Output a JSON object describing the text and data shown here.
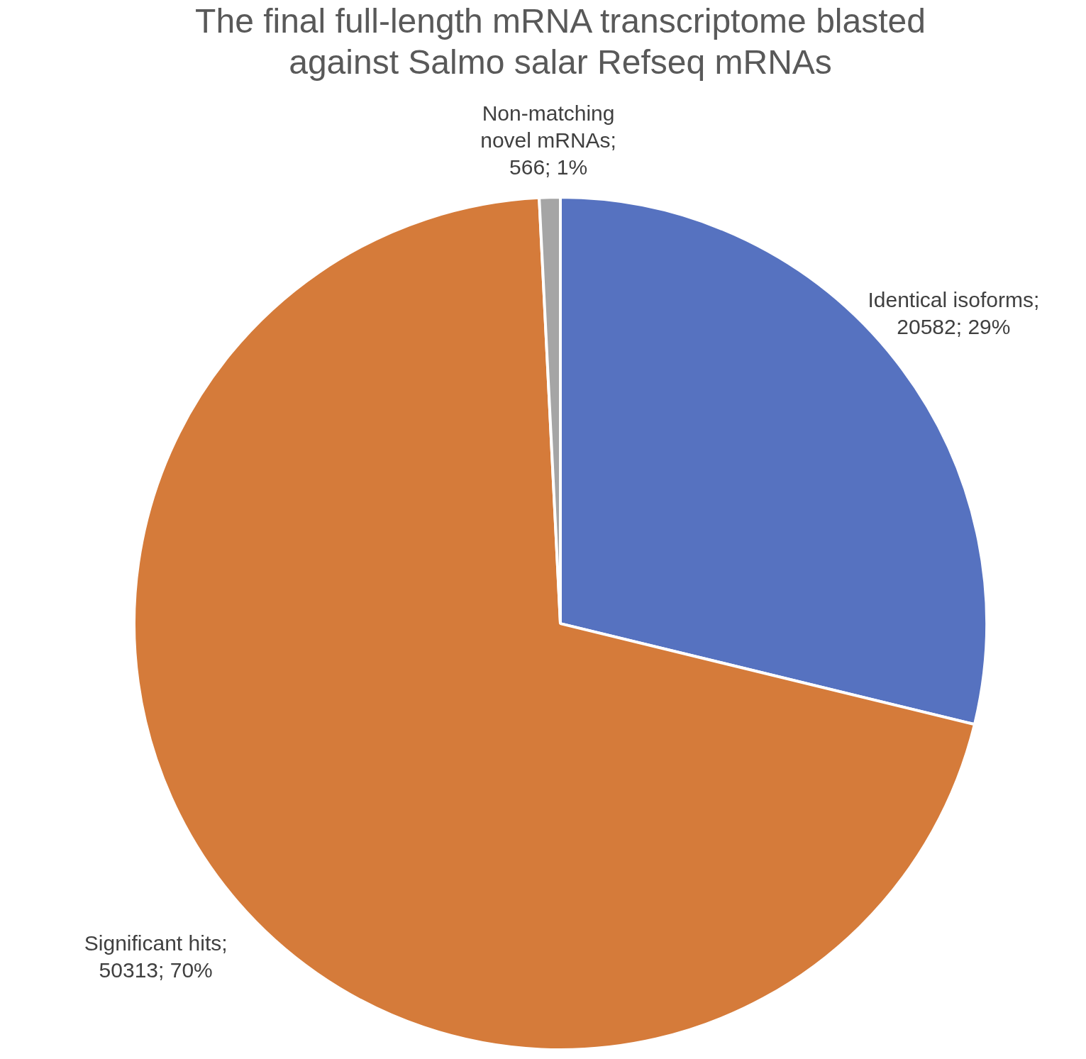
{
  "chart_data": {
    "type": "pie",
    "title": "The final full-length mRNA transcriptome blasted against Salmo salar Refseq mRNAs",
    "categories": [
      "Identical isoforms",
      "Significant hits",
      "Non-matching novel mRNAs"
    ],
    "values": [
      20582,
      50313,
      566
    ],
    "colors": [
      "#5672c0",
      "#d57b3a",
      "#a5a5a5"
    ],
    "value_labels": [
      ";\n20582; 29%",
      ";\n50313; 70%",
      ";\n566; 1%"
    ],
    "legend": false
  }
}
